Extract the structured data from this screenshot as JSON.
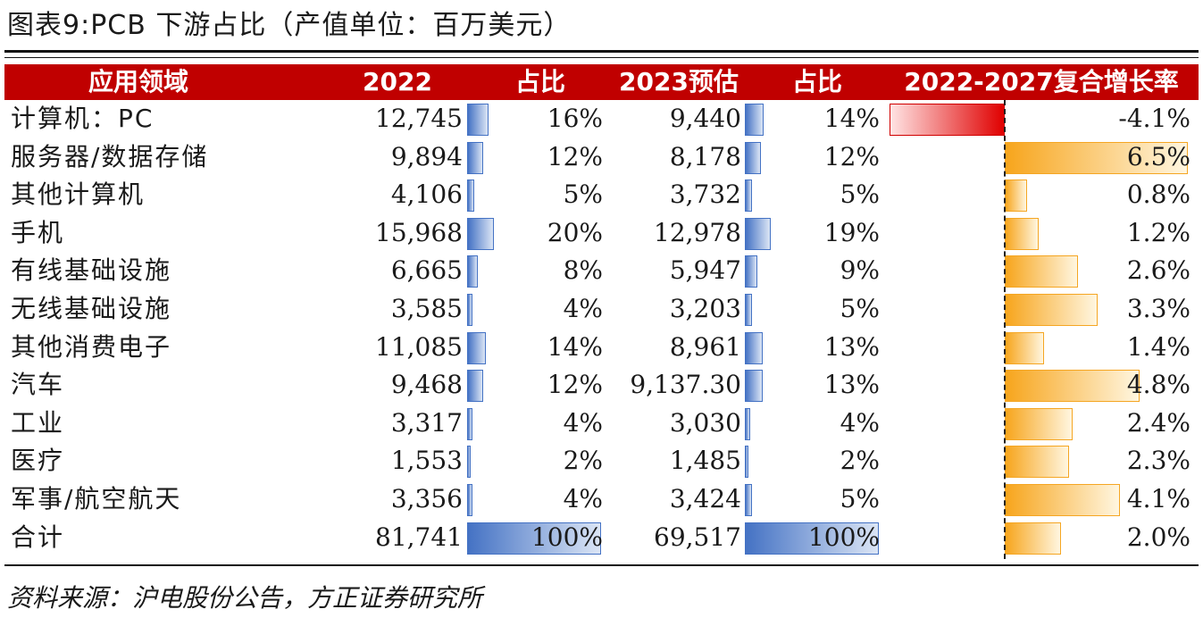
{
  "title": "图表9:PCB 下游占比（产值单位：百万美元）",
  "source": "资料来源：沪电股份公告，方正证券研究所",
  "header": {
    "col_application": "应用领域",
    "col_2022": "2022",
    "col_share_2022": "占比",
    "col_2023e": "2023预估",
    "col_share_2023e": "占比",
    "col_cagr": "2022-2027复合增长率"
  },
  "colors": {
    "header_bg": "#c00000",
    "bar_blue": "#4472c4",
    "bar_orange": "#f7a51c",
    "bar_red": "#e00000"
  },
  "rows": [
    {
      "name": "计算机：PC",
      "v2022": "12,745",
      "s2022": "16%",
      "s2022_pct": 16,
      "v2023": "9,440",
      "s2023": "14%",
      "s2023_pct": 14,
      "cagr": "-4.1%",
      "cagr_val": -4.1
    },
    {
      "name": "服务器/数据存储",
      "v2022": "9,894",
      "s2022": "12%",
      "s2022_pct": 12,
      "v2023": "8,178",
      "s2023": "12%",
      "s2023_pct": 12,
      "cagr": "6.5%",
      "cagr_val": 6.5
    },
    {
      "name": "其他计算机",
      "v2022": "4,106",
      "s2022": "5%",
      "s2022_pct": 5,
      "v2023": "3,732",
      "s2023": "5%",
      "s2023_pct": 5,
      "cagr": "0.8%",
      "cagr_val": 0.8
    },
    {
      "name": "手机",
      "v2022": "15,968",
      "s2022": "20%",
      "s2022_pct": 20,
      "v2023": "12,978",
      "s2023": "19%",
      "s2023_pct": 19,
      "cagr": "1.2%",
      "cagr_val": 1.2
    },
    {
      "name": "有线基础设施",
      "v2022": "6,665",
      "s2022": "8%",
      "s2022_pct": 8,
      "v2023": "5,947",
      "s2023": "9%",
      "s2023_pct": 9,
      "cagr": "2.6%",
      "cagr_val": 2.6
    },
    {
      "name": "无线基础设施",
      "v2022": "3,585",
      "s2022": "4%",
      "s2022_pct": 4,
      "v2023": "3,203",
      "s2023": "5%",
      "s2023_pct": 5,
      "cagr": "3.3%",
      "cagr_val": 3.3
    },
    {
      "name": "其他消费电子",
      "v2022": "11,085",
      "s2022": "14%",
      "s2022_pct": 14,
      "v2023": "8,961",
      "s2023": "13%",
      "s2023_pct": 13,
      "cagr": "1.4%",
      "cagr_val": 1.4
    },
    {
      "name": "汽车",
      "v2022": "9,468",
      "s2022": "12%",
      "s2022_pct": 12,
      "v2023": "9,137.30",
      "s2023": "13%",
      "s2023_pct": 13,
      "cagr": "4.8%",
      "cagr_val": 4.8
    },
    {
      "name": "工业",
      "v2022": "3,317",
      "s2022": "4%",
      "s2022_pct": 4,
      "v2023": "3,030",
      "s2023": "4%",
      "s2023_pct": 4,
      "cagr": "2.4%",
      "cagr_val": 2.4
    },
    {
      "name": "医疗",
      "v2022": "1,553",
      "s2022": "2%",
      "s2022_pct": 2,
      "v2023": "1,485",
      "s2023": "2%",
      "s2023_pct": 2,
      "cagr": "2.3%",
      "cagr_val": 2.3
    },
    {
      "name": "军事/航空航天",
      "v2022": "3,356",
      "s2022": "4%",
      "s2022_pct": 4,
      "v2023": "3,424",
      "s2023": "5%",
      "s2023_pct": 5,
      "cagr": "4.1%",
      "cagr_val": 4.1
    },
    {
      "name": "合计",
      "v2022": "81,741",
      "s2022": "100%",
      "s2022_pct": 100,
      "v2023": "69,517",
      "s2023": "100%",
      "s2023_pct": 100,
      "cagr": "2.0%",
      "cagr_val": 2.0
    }
  ]
}
